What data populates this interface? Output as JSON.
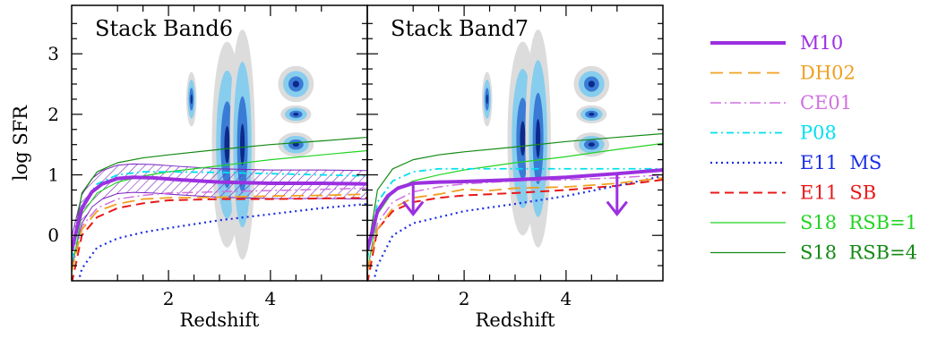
{
  "chart_data": [
    {
      "type": "line",
      "title": "Stack Band6",
      "xlabel": "Redshift",
      "ylabel": "log SFR",
      "xlim": [
        0.1,
        5.9
      ],
      "ylim": [
        -0.75,
        3.8
      ],
      "xticks": [
        2,
        4
      ],
      "yticks": [
        0,
        1,
        2,
        3
      ],
      "shaded_band": {
        "series": "M10",
        "lower_offset": -0.25,
        "upper_offset": 0.22
      },
      "series": [
        {
          "name": "M10",
          "color": "#9b30e0",
          "width": 4,
          "dash": "",
          "x": [
            0.1,
            0.3,
            0.5,
            0.7,
            1.0,
            1.3,
            1.7,
            2.2,
            3.0,
            4.0,
            5.0,
            5.9
          ],
          "y": [
            -0.25,
            0.45,
            0.72,
            0.85,
            0.94,
            0.96,
            0.95,
            0.92,
            0.88,
            0.86,
            0.86,
            0.85
          ]
        },
        {
          "name": "DH02",
          "color": "#f0a020",
          "width": 1.8,
          "dash": "14,7",
          "x": [
            0.1,
            0.3,
            0.6,
            1.0,
            1.5,
            2.0,
            3.0,
            4.0,
            5.0,
            5.9
          ],
          "y": [
            -0.6,
            0.1,
            0.4,
            0.52,
            0.6,
            0.62,
            0.63,
            0.65,
            0.66,
            0.68
          ]
        },
        {
          "name": "CE01",
          "color": "#d070e0",
          "width": 1.5,
          "dash": "12,4,2,4",
          "x": [
            0.1,
            0.3,
            0.6,
            1.0,
            1.5,
            2.0,
            3.0,
            4.0,
            5.0,
            5.9
          ],
          "y": [
            -0.6,
            0.15,
            0.45,
            0.6,
            0.66,
            0.7,
            0.72,
            0.74,
            0.76,
            0.78
          ]
        },
        {
          "name": "P08",
          "color": "#00e0f0",
          "width": 1.8,
          "dash": "8,4,2,4",
          "x": [
            0.1,
            0.3,
            0.6,
            1.0,
            1.5,
            2.0,
            3.0,
            4.0,
            5.0,
            5.9
          ],
          "y": [
            -0.4,
            0.5,
            0.85,
            1.0,
            1.05,
            1.05,
            1.04,
            1.02,
            1.0,
            0.98
          ]
        },
        {
          "name": "E11 MS",
          "color": "#1a2ee6",
          "width": 2.2,
          "dash": "2,4",
          "x": [
            0.1,
            0.3,
            0.6,
            1.0,
            1.5,
            2.0,
            3.0,
            4.0,
            5.0,
            5.9
          ],
          "y": [
            -1.2,
            -0.55,
            -0.2,
            -0.05,
            0.05,
            0.12,
            0.25,
            0.35,
            0.45,
            0.52
          ]
        },
        {
          "name": "E11 SB",
          "color": "#e81818",
          "width": 2,
          "dash": "10,6",
          "x": [
            0.1,
            0.3,
            0.6,
            1.0,
            1.5,
            2.0,
            3.0,
            4.0,
            5.0,
            5.9
          ],
          "y": [
            -0.8,
            0.0,
            0.3,
            0.45,
            0.53,
            0.58,
            0.6,
            0.6,
            0.61,
            0.62
          ]
        },
        {
          "name": "S18 RSB=1",
          "color": "#22d422",
          "width": 1.2,
          "dash": "",
          "x": [
            0.1,
            0.3,
            0.6,
            1.0,
            1.5,
            2.0,
            3.0,
            4.0,
            5.0,
            5.9
          ],
          "y": [
            -0.6,
            0.35,
            0.7,
            0.88,
            0.98,
            1.05,
            1.15,
            1.25,
            1.33,
            1.4
          ]
        },
        {
          "name": "S18 RSB=4",
          "color": "#148a14",
          "width": 1.2,
          "dash": "",
          "x": [
            0.1,
            0.3,
            0.6,
            1.0,
            1.5,
            2.0,
            3.0,
            4.0,
            5.0,
            5.9
          ],
          "y": [
            -0.3,
            0.7,
            1.05,
            1.2,
            1.28,
            1.33,
            1.42,
            1.5,
            1.56,
            1.62
          ]
        }
      ],
      "contour_regions": [
        {
          "cx": 2.45,
          "cy": 2.25,
          "rx": 0.1,
          "ry": 0.45
        },
        {
          "cx": 3.15,
          "cy": 1.5,
          "rx": 0.3,
          "ry": 1.7
        },
        {
          "cx": 3.45,
          "cy": 1.5,
          "rx": 0.25,
          "ry": 1.9
        },
        {
          "cx": 4.5,
          "cy": 2.5,
          "rx": 0.35,
          "ry": 0.3
        },
        {
          "cx": 4.5,
          "cy": 2.0,
          "rx": 0.3,
          "ry": 0.15
        },
        {
          "cx": 4.5,
          "cy": 1.5,
          "rx": 0.35,
          "ry": 0.2
        }
      ]
    },
    {
      "type": "line",
      "title": "Stack Band7",
      "xlabel": "Redshift",
      "ylabel": "",
      "xlim": [
        0.1,
        5.9
      ],
      "ylim": [
        -0.75,
        3.8
      ],
      "xticks": [
        2,
        4
      ],
      "yticks": [
        0,
        1,
        2,
        3
      ],
      "upper_limits": [
        {
          "x": 1.0,
          "y_from": 0.85,
          "y_to": 0.35
        },
        {
          "x": 5.0,
          "y_from": 1.0,
          "y_to": 0.35
        }
      ],
      "series": [
        {
          "name": "M10",
          "color": "#9b30e0",
          "width": 4,
          "dash": "",
          "x": [
            0.1,
            0.3,
            0.5,
            0.7,
            1.0,
            1.5,
            2.0,
            3.0,
            4.0,
            5.0,
            5.9
          ],
          "y": [
            -0.25,
            0.4,
            0.65,
            0.78,
            0.86,
            0.88,
            0.89,
            0.92,
            0.96,
            1.02,
            1.08
          ]
        },
        {
          "name": "DH02",
          "color": "#f0a020",
          "width": 1.8,
          "dash": "14,7",
          "x": [
            0.1,
            0.3,
            0.6,
            1.0,
            1.5,
            2.0,
            2.5,
            3.0,
            4.0,
            5.0,
            5.9
          ],
          "y": [
            -0.6,
            0.1,
            0.45,
            0.62,
            0.68,
            0.76,
            0.74,
            0.78,
            0.8,
            0.86,
            0.95
          ]
        },
        {
          "name": "CE01",
          "color": "#d070e0",
          "width": 1.5,
          "dash": "12,4,2,4",
          "x": [
            0.1,
            0.3,
            0.6,
            1.0,
            1.5,
            2.0,
            3.0,
            4.0,
            5.0,
            5.9
          ],
          "y": [
            -0.6,
            0.2,
            0.55,
            0.72,
            0.8,
            0.85,
            0.9,
            0.92,
            0.95,
            1.0
          ]
        },
        {
          "name": "P08",
          "color": "#00e0f0",
          "width": 1.8,
          "dash": "8,4,2,4",
          "x": [
            0.1,
            0.3,
            0.6,
            1.0,
            1.5,
            2.0,
            3.0,
            4.0,
            5.0,
            5.9
          ],
          "y": [
            -0.4,
            0.55,
            0.9,
            1.05,
            1.1,
            1.1,
            1.1,
            1.1,
            1.1,
            1.1
          ]
        },
        {
          "name": "E11 MS",
          "color": "#1a2ee6",
          "width": 2.2,
          "dash": "2,4",
          "x": [
            0.1,
            0.3,
            0.6,
            1.0,
            1.5,
            2.0,
            3.0,
            4.0,
            5.0,
            5.9
          ],
          "y": [
            -1.2,
            -0.5,
            0.0,
            0.2,
            0.3,
            0.4,
            0.52,
            0.65,
            0.82,
            0.98
          ]
        },
        {
          "name": "E11 SB",
          "color": "#e81818",
          "width": 2,
          "dash": "10,6",
          "x": [
            0.1,
            0.3,
            0.6,
            1.0,
            1.5,
            2.0,
            3.0,
            4.0,
            5.0,
            5.9
          ],
          "y": [
            -0.8,
            0.1,
            0.4,
            0.55,
            0.62,
            0.66,
            0.7,
            0.75,
            0.82,
            0.92
          ]
        },
        {
          "name": "S18 RSB=1",
          "color": "#22d422",
          "width": 1.2,
          "dash": "",
          "x": [
            0.1,
            0.3,
            0.6,
            1.0,
            1.5,
            2.0,
            3.0,
            4.0,
            5.0,
            5.9
          ],
          "y": [
            -0.6,
            0.35,
            0.72,
            0.9,
            1.0,
            1.08,
            1.2,
            1.3,
            1.42,
            1.52
          ]
        },
        {
          "name": "S18 RSB=4",
          "color": "#148a14",
          "width": 1.2,
          "dash": "",
          "x": [
            0.1,
            0.3,
            0.6,
            1.0,
            1.5,
            2.0,
            3.0,
            4.0,
            5.0,
            5.9
          ],
          "y": [
            -0.3,
            0.75,
            1.1,
            1.25,
            1.33,
            1.38,
            1.46,
            1.55,
            1.62,
            1.68
          ]
        }
      ],
      "contour_regions": [
        {
          "cx": 2.45,
          "cy": 2.25,
          "rx": 0.1,
          "ry": 0.45
        },
        {
          "cx": 3.15,
          "cy": 1.6,
          "rx": 0.3,
          "ry": 1.6
        },
        {
          "cx": 3.45,
          "cy": 1.6,
          "rx": 0.25,
          "ry": 1.8
        },
        {
          "cx": 4.5,
          "cy": 2.5,
          "rx": 0.35,
          "ry": 0.3
        },
        {
          "cx": 4.5,
          "cy": 2.0,
          "rx": 0.3,
          "ry": 0.15
        },
        {
          "cx": 4.5,
          "cy": 1.5,
          "rx": 0.35,
          "ry": 0.2
        }
      ]
    }
  ],
  "legend": [
    {
      "label": "M10",
      "color": "#9b30e0",
      "text_color": "#9b30e0",
      "width": 4,
      "dash": ""
    },
    {
      "label": "DH02",
      "color": "#f0a020",
      "text_color": "#f0a020",
      "width": 1.8,
      "dash": "14,7"
    },
    {
      "label": "CE01",
      "color": "#d070e0",
      "text_color": "#d070e0",
      "width": 1.5,
      "dash": "12,4,2,4"
    },
    {
      "label": "P08",
      "color": "#00e0f0",
      "text_color": "#00e0f0",
      "width": 1.8,
      "dash": "8,4,2,4"
    },
    {
      "label": "E11  MS",
      "color": "#1a2ee6",
      "text_color": "#1a2ee6",
      "width": 2.2,
      "dash": "2,4"
    },
    {
      "label": "E11  SB",
      "color": "#e81818",
      "text_color": "#e81818",
      "width": 2,
      "dash": "10,6"
    },
    {
      "label": "S18  RSB=1",
      "color": "#22d422",
      "text_color": "#22d422",
      "width": 1.2,
      "dash": ""
    },
    {
      "label": "S18  RSB=4",
      "color": "#148a14",
      "text_color": "#148a14",
      "width": 1.2,
      "dash": ""
    }
  ],
  "colors": {
    "contour_outer": "#dcdcdc",
    "contour_light": "#87cdee",
    "contour_mid": "#3a7bd5",
    "contour_dark": "#0b2a8a",
    "band_hatch": "#7a20c0"
  }
}
